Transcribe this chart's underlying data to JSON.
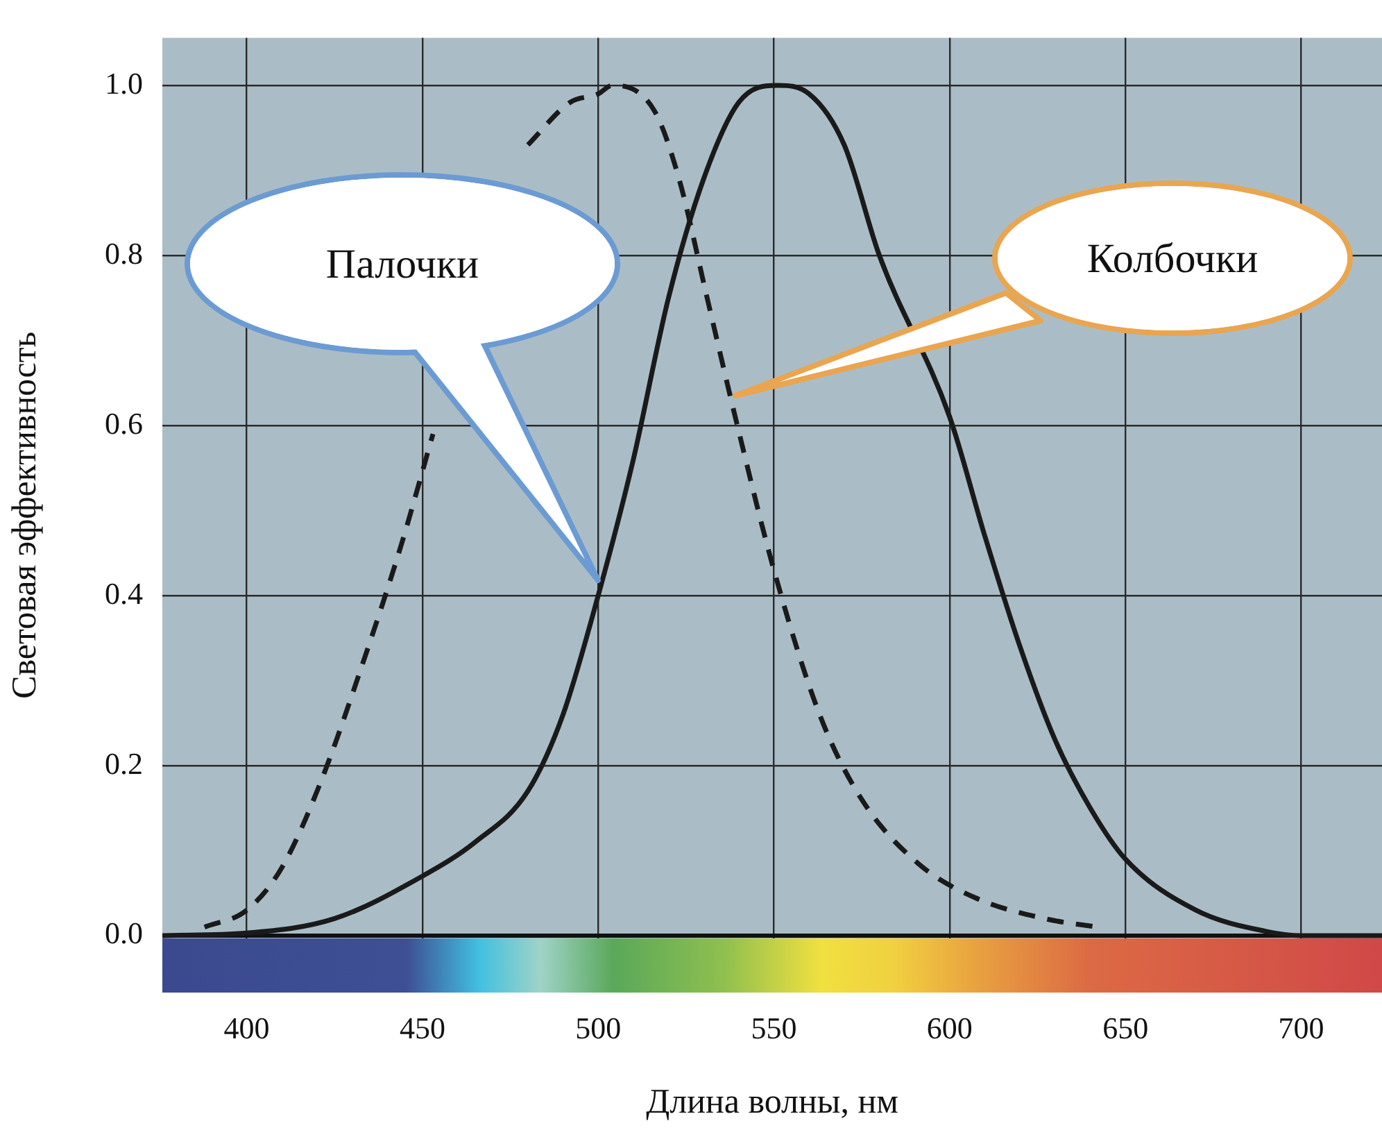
{
  "chart_data": {
    "type": "line",
    "xlabel": "Длина волны, нм",
    "ylabel": "Световая эффективность",
    "xlim": [
      376,
      723
    ],
    "xticks": [
      400,
      450,
      500,
      550,
      600,
      650,
      700
    ],
    "ylim": [
      -0.067,
      1.056
    ],
    "yticks": [
      {
        "value": 0,
        "label": "0.0"
      },
      {
        "value": 0.2,
        "label": "0.2"
      },
      {
        "value": 0.4,
        "label": "0.4"
      },
      {
        "value": 0.6,
        "label": "0.6"
      },
      {
        "value": 0.8,
        "label": "0.8"
      },
      {
        "value": 1,
        "label": "1.0"
      }
    ],
    "grid": true,
    "legend": false,
    "marker": "none",
    "series": [
      {
        "color": "#1a1a1a",
        "line_style": "dashed",
        "x": [
          388,
          400,
          410,
          421,
          433,
          444,
          453,
          468,
          480,
          492,
          500,
          504,
          516,
          523,
          531,
          539,
          550,
          563,
          575,
          591,
          607,
          627,
          642
        ],
        "values": [
          0.01,
          0.03,
          0.08,
          0.18,
          0.32,
          0.46,
          0.59,
          null,
          0.93,
          0.98,
          0.99,
          1.0,
          0.97,
          0.89,
          0.75,
          0.61,
          0.43,
          0.26,
          0.16,
          0.085,
          0.045,
          0.02,
          0.01
        ]
      },
      {
        "color": "#1a1a1a",
        "line_style": "solid",
        "x": [
          376,
          400,
          425,
          450,
          465,
          480,
          490,
          500,
          510,
          520,
          530,
          540,
          551,
          560,
          570,
          580,
          600,
          610,
          620,
          630,
          640,
          650,
          670,
          690,
          700,
          712,
          723
        ],
        "values": [
          0.0,
          0.003,
          0.02,
          0.07,
          0.11,
          0.17,
          0.26,
          0.4,
          0.56,
          0.75,
          0.89,
          0.98,
          1.0,
          0.99,
          0.93,
          0.8,
          0.61,
          0.47,
          0.34,
          0.23,
          0.15,
          0.09,
          0.03,
          0.005,
          0.0,
          0.0,
          0.0
        ]
      }
    ],
    "annotations": [
      "Палочки",
      "Колбочки"
    ]
  }
}
